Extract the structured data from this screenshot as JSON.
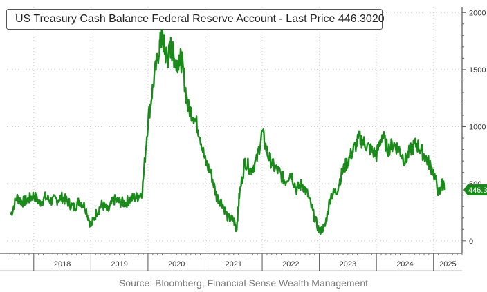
{
  "chart_data": {
    "type": "line",
    "title": "US Treasury Cash Balance Federal Reserve Account - Last Price 446.3020",
    "series": [
      {
        "name": "US Treasury Cash Balance Federal Reserve Account",
        "color": "#1a8a1a",
        "x": [
          2017.6,
          2017.7,
          2017.8,
          2017.9,
          2018.0,
          2018.1,
          2018.2,
          2018.3,
          2018.4,
          2018.5,
          2018.6,
          2018.7,
          2018.8,
          2018.9,
          2019.0,
          2019.1,
          2019.2,
          2019.3,
          2019.4,
          2019.5,
          2019.6,
          2019.7,
          2019.8,
          2019.9,
          2020.0,
          2020.1,
          2020.2,
          2020.25,
          2020.3,
          2020.35,
          2020.4,
          2020.45,
          2020.5,
          2020.55,
          2020.6,
          2020.7,
          2020.8,
          2020.9,
          2021.0,
          2021.1,
          2021.2,
          2021.3,
          2021.4,
          2021.5,
          2021.55,
          2021.6,
          2021.7,
          2021.8,
          2021.9,
          2022.0,
          2022.1,
          2022.2,
          2022.3,
          2022.4,
          2022.5,
          2022.6,
          2022.7,
          2022.8,
          2022.9,
          2023.0,
          2023.1,
          2023.2,
          2023.3,
          2023.4,
          2023.5,
          2023.6,
          2023.7,
          2023.8,
          2023.9,
          2024.0,
          2024.1,
          2024.2,
          2024.3,
          2024.4,
          2024.5,
          2024.6,
          2024.7,
          2024.8,
          2024.9,
          2025.0,
          2025.1,
          2025.15,
          2025.2
        ],
        "y": [
          230,
          380,
          340,
          360,
          400,
          330,
          380,
          350,
          360,
          380,
          340,
          290,
          350,
          300,
          130,
          250,
          320,
          260,
          360,
          340,
          330,
          370,
          380,
          430,
          1050,
          1400,
          1700,
          1800,
          1650,
          1600,
          1700,
          1620,
          1540,
          1620,
          1550,
          1170,
          1100,
          950,
          700,
          600,
          390,
          330,
          200,
          180,
          100,
          400,
          700,
          620,
          700,
          950,
          750,
          650,
          600,
          520,
          600,
          450,
          500,
          400,
          230,
          80,
          130,
          400,
          430,
          600,
          700,
          800,
          900,
          850,
          800,
          750,
          930,
          800,
          850,
          800,
          700,
          800,
          850,
          780,
          700,
          600,
          400,
          520,
          446.302
        ],
        "last_price_label": "446.3"
      }
    ],
    "x_labels": [
      "2018",
      "2019",
      "2020",
      "2021",
      "2022",
      "2023",
      "2024",
      "2025"
    ],
    "y_ticks": [
      0,
      500,
      1000,
      1500,
      2000
    ],
    "y_tick_labels": [
      "0",
      "500",
      "1000",
      "1500",
      "2000"
    ],
    "ylim": [
      -110,
      2050
    ],
    "xlim": [
      2017.53,
      2025.5
    ],
    "source": "Source: Bloomberg, Financial Sense Wealth Management"
  }
}
